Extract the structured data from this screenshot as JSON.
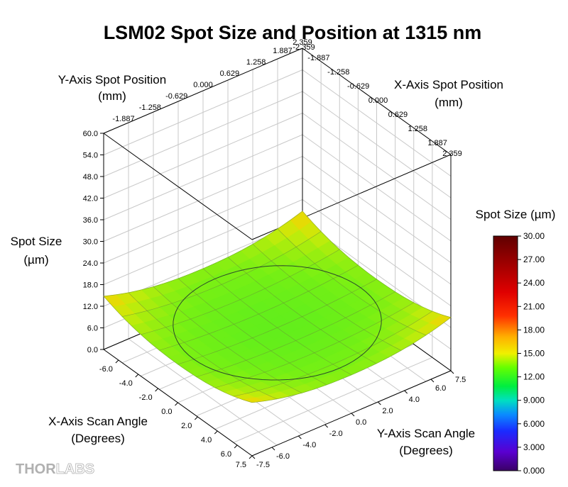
{
  "chart_data": {
    "type": "surface3d",
    "title": "LSM02 Spot Size and Position at 1315 nm",
    "z_axis": {
      "label_line1": "Spot Size",
      "label_line2": "(µm)",
      "ticks": [
        "0.0",
        "6.0",
        "12.0",
        "18.0",
        "24.0",
        "30.0",
        "36.0",
        "42.0",
        "48.0",
        "54.0",
        "60.0"
      ],
      "range": [
        0,
        60
      ]
    },
    "x_scan_axis": {
      "label_line1": "X-Axis Scan Angle",
      "label_line2": "(Degrees)",
      "ticks": [
        "-6.0",
        "-4.0",
        "-2.0",
        "0.0",
        "2.0",
        "4.0",
        "6.0",
        "7.5"
      ],
      "range": [
        -7.5,
        7.5
      ]
    },
    "y_scan_axis": {
      "label_line1": "Y-Axis Scan Angle",
      "label_line2": "(Degrees)",
      "ticks": [
        "-7.5",
        "-6.0",
        "-4.0",
        "-2.0",
        "0.0",
        "2.0",
        "4.0",
        "6.0",
        "7.5"
      ],
      "range": [
        -7.5,
        7.5
      ]
    },
    "y_position_axis": {
      "label_line1": "Y-Axis Spot Position",
      "label_line2": "(mm)",
      "ticks": [
        "-1.887",
        "-1.258",
        "-0.629",
        "0.000",
        "0.629",
        "1.258",
        "1.887",
        "2.359"
      ],
      "range": [
        -2.359,
        2.359
      ]
    },
    "x_position_axis": {
      "label_line1": "X-Axis Spot Position",
      "label_line2": "(mm)",
      "ticks": [
        "-2.359",
        "-1.887",
        "-1.258",
        "-0.629",
        "0.000",
        "0.629",
        "1.258",
        "1.887",
        "2.359"
      ],
      "range": [
        -2.359,
        2.359
      ]
    },
    "colorbar": {
      "title": "Spot Size (µm)",
      "ticks": [
        "0.000",
        "3.000",
        "6.000",
        "9.000",
        "12.00",
        "15.00",
        "18.00",
        "21.00",
        "24.00",
        "27.00",
        "30.00"
      ],
      "range": [
        0,
        30
      ]
    },
    "surface": {
      "description_values": "spot size over scan angle grid",
      "center_value": 9.0,
      "corner_values": {
        "front": 16.0,
        "left": 16.0,
        "right": 16.0,
        "back": 17.0
      },
      "edge_mid_value": 12.0
    },
    "grid": true
  },
  "logo": {
    "part1": "THOR",
    "part2": "LABS"
  }
}
